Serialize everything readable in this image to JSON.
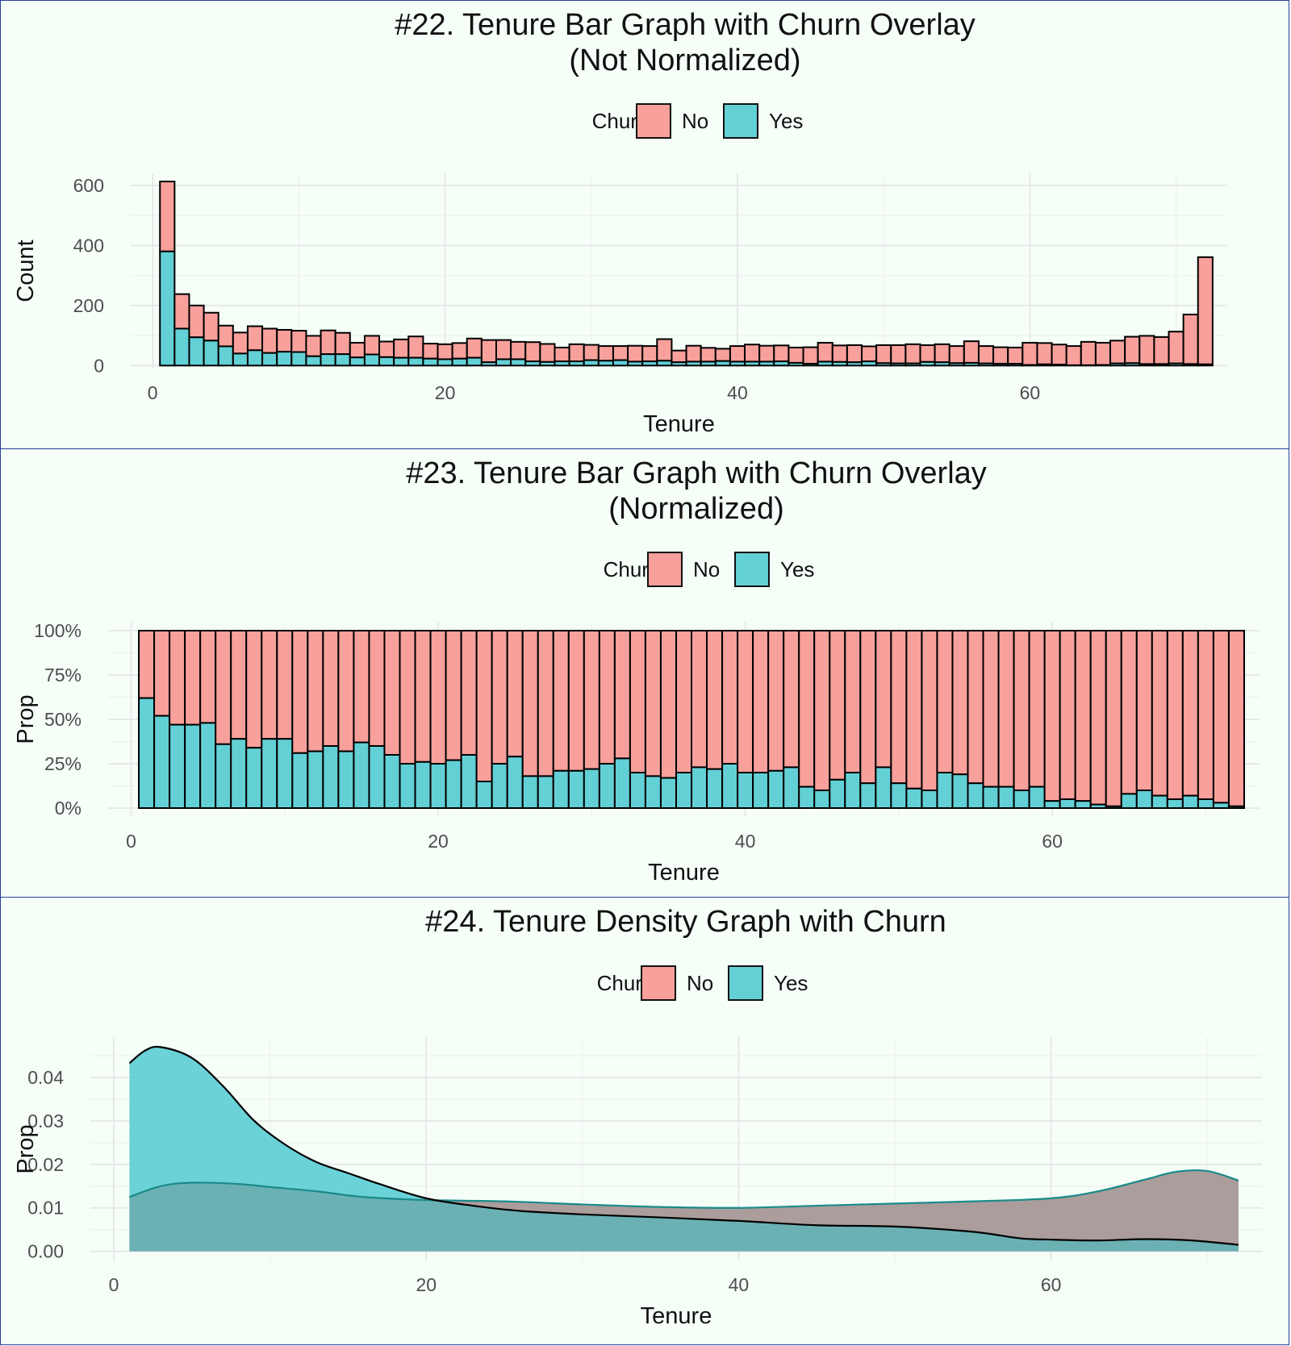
{
  "chart_data": [
    {
      "type": "bar",
      "title": "#22. Tenure Bar Graph with Churn Overlay\n(Not Normalized)",
      "xlabel": "Tenure",
      "ylabel": "Count",
      "xlim": [
        -1.5,
        73.5
      ],
      "ylim": [
        -10,
        640
      ],
      "x_ticks": [
        0,
        20,
        40,
        60
      ],
      "y_ticks": [
        0,
        200,
        400,
        600
      ],
      "y_tick_labels": [
        "0",
        "200",
        "400",
        "600"
      ],
      "legend": {
        "title": "Churn",
        "entries": [
          "No",
          "Yes"
        ],
        "position": "top"
      },
      "colors": {
        "No": "#f8a09b",
        "Yes": "#63d0d6"
      },
      "grid": true,
      "stacked": true,
      "x": [
        1,
        2,
        3,
        4,
        5,
        6,
        7,
        8,
        9,
        10,
        11,
        12,
        13,
        14,
        15,
        16,
        17,
        18,
        19,
        20,
        21,
        22,
        23,
        24,
        25,
        26,
        27,
        28,
        29,
        30,
        31,
        32,
        33,
        34,
        35,
        36,
        37,
        38,
        39,
        40,
        41,
        42,
        43,
        44,
        45,
        46,
        47,
        48,
        49,
        50,
        51,
        52,
        53,
        54,
        55,
        56,
        57,
        58,
        59,
        60,
        61,
        62,
        63,
        64,
        65,
        66,
        67,
        68,
        69,
        70,
        71,
        72
      ],
      "series": [
        {
          "name": "Yes",
          "values": [
            380,
            123,
            94,
            83,
            64,
            40,
            51,
            42,
            46,
            45,
            31,
            38,
            38,
            27,
            37,
            28,
            26,
            26,
            23,
            21,
            23,
            26,
            11,
            21,
            21,
            14,
            12,
            14,
            14,
            18,
            16,
            18,
            13,
            14,
            16,
            11,
            13,
            13,
            15,
            13,
            13,
            13,
            14,
            9,
            6,
            13,
            12,
            11,
            14,
            8,
            7,
            7,
            12,
            11,
            8,
            9,
            7,
            6,
            6,
            2,
            4,
            3,
            1,
            1,
            2,
            7,
            8,
            5,
            5,
            7,
            5,
            4
          ]
        },
        {
          "name": "No",
          "values": [
            233,
            115,
            106,
            93,
            69,
            70,
            80,
            81,
            73,
            71,
            68,
            79,
            71,
            49,
            62,
            52,
            61,
            71,
            50,
            50,
            52,
            64,
            74,
            64,
            58,
            64,
            60,
            46,
            57,
            51,
            49,
            47,
            53,
            51,
            72,
            39,
            53,
            46,
            41,
            52,
            57,
            53,
            53,
            51,
            55,
            63,
            55,
            57,
            50,
            60,
            61,
            64,
            56,
            60,
            57,
            72,
            58,
            55,
            54,
            74,
            71,
            67,
            64,
            78,
            74,
            76,
            88,
            94,
            90,
            106,
            165,
            357
          ]
        }
      ]
    },
    {
      "type": "bar",
      "title": "#23. Tenure Bar Graph with Churn Overlay\n(Normalized)",
      "xlabel": "Tenure",
      "ylabel": "Prop",
      "xlim": [
        -1.5,
        73.5
      ],
      "ylim": [
        -0.05,
        1.05
      ],
      "x_ticks": [
        0,
        20,
        40,
        60
      ],
      "y_ticks": [
        0,
        0.25,
        0.5,
        0.75,
        1.0
      ],
      "y_tick_labels": [
        "0%",
        "25%",
        "50%",
        "75%",
        "100%"
      ],
      "legend": {
        "title": "Churn",
        "entries": [
          "No",
          "Yes"
        ],
        "position": "top"
      },
      "colors": {
        "No": "#f8a09b",
        "Yes": "#63d0d6"
      },
      "grid": true,
      "stacked": true,
      "x": [
        1,
        2,
        3,
        4,
        5,
        6,
        7,
        8,
        9,
        10,
        11,
        12,
        13,
        14,
        15,
        16,
        17,
        18,
        19,
        20,
        21,
        22,
        23,
        24,
        25,
        26,
        27,
        28,
        29,
        30,
        31,
        32,
        33,
        34,
        35,
        36,
        37,
        38,
        39,
        40,
        41,
        42,
        43,
        44,
        45,
        46,
        47,
        48,
        49,
        50,
        51,
        52,
        53,
        54,
        55,
        56,
        57,
        58,
        59,
        60,
        61,
        62,
        63,
        64,
        65,
        66,
        67,
        68,
        69,
        70,
        71,
        72
      ],
      "series": [
        {
          "name": "Yes",
          "values": [
            0.62,
            0.52,
            0.47,
            0.47,
            0.48,
            0.36,
            0.39,
            0.34,
            0.39,
            0.39,
            0.31,
            0.32,
            0.35,
            0.32,
            0.37,
            0.35,
            0.3,
            0.25,
            0.26,
            0.25,
            0.27,
            0.3,
            0.15,
            0.25,
            0.29,
            0.18,
            0.18,
            0.21,
            0.21,
            0.22,
            0.25,
            0.28,
            0.2,
            0.18,
            0.17,
            0.2,
            0.23,
            0.22,
            0.25,
            0.2,
            0.2,
            0.21,
            0.23,
            0.12,
            0.1,
            0.16,
            0.2,
            0.14,
            0.23,
            0.14,
            0.11,
            0.1,
            0.2,
            0.19,
            0.14,
            0.12,
            0.12,
            0.1,
            0.12,
            0.04,
            0.05,
            0.04,
            0.02,
            0.01,
            0.08,
            0.1,
            0.07,
            0.05,
            0.07,
            0.05,
            0.03,
            0.01
          ]
        },
        {
          "name": "No",
          "values": [
            0.38,
            0.48,
            0.53,
            0.53,
            0.52,
            0.64,
            0.61,
            0.66,
            0.61,
            0.61,
            0.69,
            0.68,
            0.65,
            0.68,
            0.63,
            0.65,
            0.7,
            0.75,
            0.74,
            0.75,
            0.73,
            0.7,
            0.85,
            0.75,
            0.71,
            0.82,
            0.82,
            0.79,
            0.79,
            0.78,
            0.75,
            0.72,
            0.8,
            0.82,
            0.83,
            0.8,
            0.77,
            0.78,
            0.75,
            0.8,
            0.8,
            0.79,
            0.77,
            0.88,
            0.9,
            0.84,
            0.8,
            0.86,
            0.77,
            0.86,
            0.89,
            0.9,
            0.8,
            0.81,
            0.86,
            0.88,
            0.88,
            0.9,
            0.88,
            0.96,
            0.95,
            0.96,
            0.98,
            0.99,
            0.92,
            0.9,
            0.93,
            0.95,
            0.93,
            0.95,
            0.97,
            0.99
          ]
        }
      ]
    },
    {
      "type": "area",
      "title": "#24. Tenure Density Graph with Churn",
      "xlabel": "Tenure",
      "ylabel": "Prop",
      "xlim": [
        -1.5,
        73.5
      ],
      "ylim": [
        -0.0023,
        0.0493
      ],
      "x_ticks": [
        0,
        20,
        40,
        60
      ],
      "y_ticks": [
        0,
        0.01,
        0.02,
        0.03,
        0.04
      ],
      "y_tick_labels": [
        "0.00",
        "0.01",
        "0.02",
        "0.03",
        "0.04"
      ],
      "legend": {
        "title": "Churn",
        "entries": [
          "No",
          "Yes"
        ],
        "position": "top"
      },
      "colors": {
        "No": "#f8a09b",
        "Yes": "#63d0d6"
      },
      "grid": true,
      "series": [
        {
          "name": "No",
          "x": [
            1,
            3,
            5,
            8,
            10,
            13,
            16,
            20,
            25,
            30,
            35,
            40,
            45,
            50,
            55,
            60,
            63,
            66,
            68,
            70,
            72
          ],
          "values": [
            0.0125,
            0.015,
            0.0158,
            0.0155,
            0.0148,
            0.0138,
            0.0125,
            0.0118,
            0.0115,
            0.0108,
            0.0102,
            0.01,
            0.0105,
            0.011,
            0.0115,
            0.0122,
            0.0138,
            0.0165,
            0.0183,
            0.0185,
            0.0163
          ]
        },
        {
          "name": "Yes",
          "x": [
            1,
            2,
            3,
            5,
            7,
            9,
            11,
            13,
            15,
            17,
            20,
            23,
            26,
            30,
            35,
            40,
            45,
            50,
            55,
            58,
            60,
            63,
            66,
            69,
            72
          ],
          "values": [
            0.0433,
            0.0462,
            0.047,
            0.0445,
            0.038,
            0.03,
            0.0245,
            0.0205,
            0.018,
            0.0155,
            0.0122,
            0.0105,
            0.0093,
            0.0085,
            0.0078,
            0.007,
            0.006,
            0.0057,
            0.0045,
            0.003,
            0.0027,
            0.0025,
            0.0028,
            0.0025,
            0.0015
          ]
        }
      ]
    }
  ]
}
